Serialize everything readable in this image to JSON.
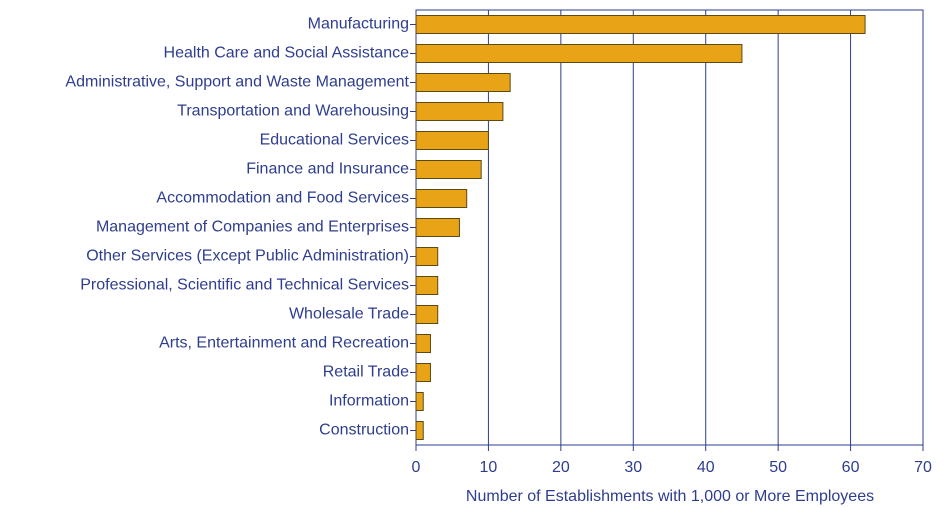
{
  "chart_data": {
    "type": "bar",
    "orientation": "horizontal",
    "x_label": "Number of Establishments with 1,000 or More Employees",
    "categories": [
      "Manufacturing",
      "Health Care and Social Assistance",
      "Administrative, Support and Waste Management",
      "Transportation and Warehousing",
      "Educational Services",
      "Finance and Insurance",
      "Accommodation and Food Services",
      "Management of Companies and Enterprises",
      "Other Services (Except Public Administration)",
      "Professional, Scientific and Technical Services",
      "Wholesale Trade",
      "Arts, Entertainment and Recreation",
      "Retail Trade",
      "Information",
      "Construction"
    ],
    "values": [
      62,
      45,
      13,
      12,
      10,
      9,
      7,
      6,
      3,
      3,
      3,
      2,
      2,
      1,
      1
    ],
    "color": "#e8a317",
    "xlim": [
      0,
      70
    ],
    "xticks": [
      0,
      10,
      20,
      30,
      40,
      50,
      60,
      70
    ],
    "grid": true
  }
}
